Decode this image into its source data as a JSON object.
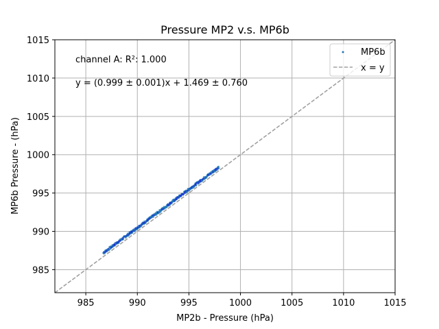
{
  "chart_data": {
    "type": "scatter",
    "title": "Pressure MP2 v.s. MP6b",
    "xlabel": "MP2b - Pressure (hPa)",
    "ylabel": "MP6b Pressure - (hPa)",
    "xlim": [
      982,
      1015
    ],
    "ylim": [
      982,
      1015
    ],
    "xticks": [
      985,
      990,
      995,
      1000,
      1005,
      1010,
      1015
    ],
    "yticks": [
      985,
      990,
      995,
      1000,
      1005,
      1010,
      1015
    ],
    "grid": true,
    "legend_position": "upper right",
    "series": [
      {
        "name": "MP6b",
        "kind": "points",
        "color": "#1f77b4",
        "x_range": [
          986.7,
          997.9
        ],
        "fit": {
          "slope": 0.999,
          "intercept": 1.469
        }
      },
      {
        "name": "x = y",
        "kind": "line",
        "color": "#a0a0a0",
        "style": "dashed"
      }
    ],
    "annotations": [
      "channel A: R²: 1.000",
      "y = (0.999 ± 0.001)x + 1.469 ± 0.760"
    ]
  }
}
